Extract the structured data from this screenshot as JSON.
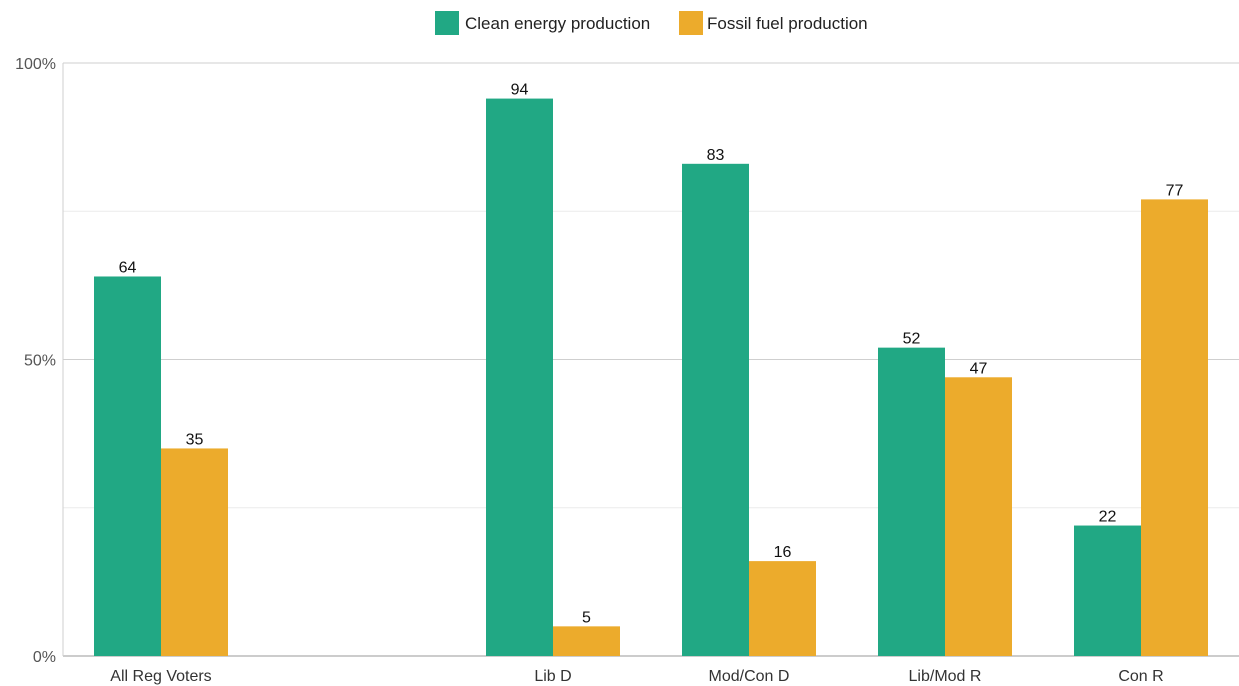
{
  "chart_data": {
    "type": "bar",
    "categories": [
      "All Reg Voters",
      "",
      "Lib D",
      "Mod/Con D",
      "Lib/Mod R",
      "Con R"
    ],
    "series": [
      {
        "name": "Clean energy production",
        "color": "#21a884",
        "values": [
          64,
          null,
          94,
          83,
          52,
          22
        ]
      },
      {
        "name": "Fossil fuel production",
        "color": "#ecab2c",
        "values": [
          35,
          null,
          5,
          16,
          47,
          77
        ]
      }
    ],
    "y_ticks": [
      "0%",
      "50%",
      "100%"
    ],
    "ylim": [
      0,
      100
    ],
    "grid": true,
    "legend": "top-center"
  }
}
